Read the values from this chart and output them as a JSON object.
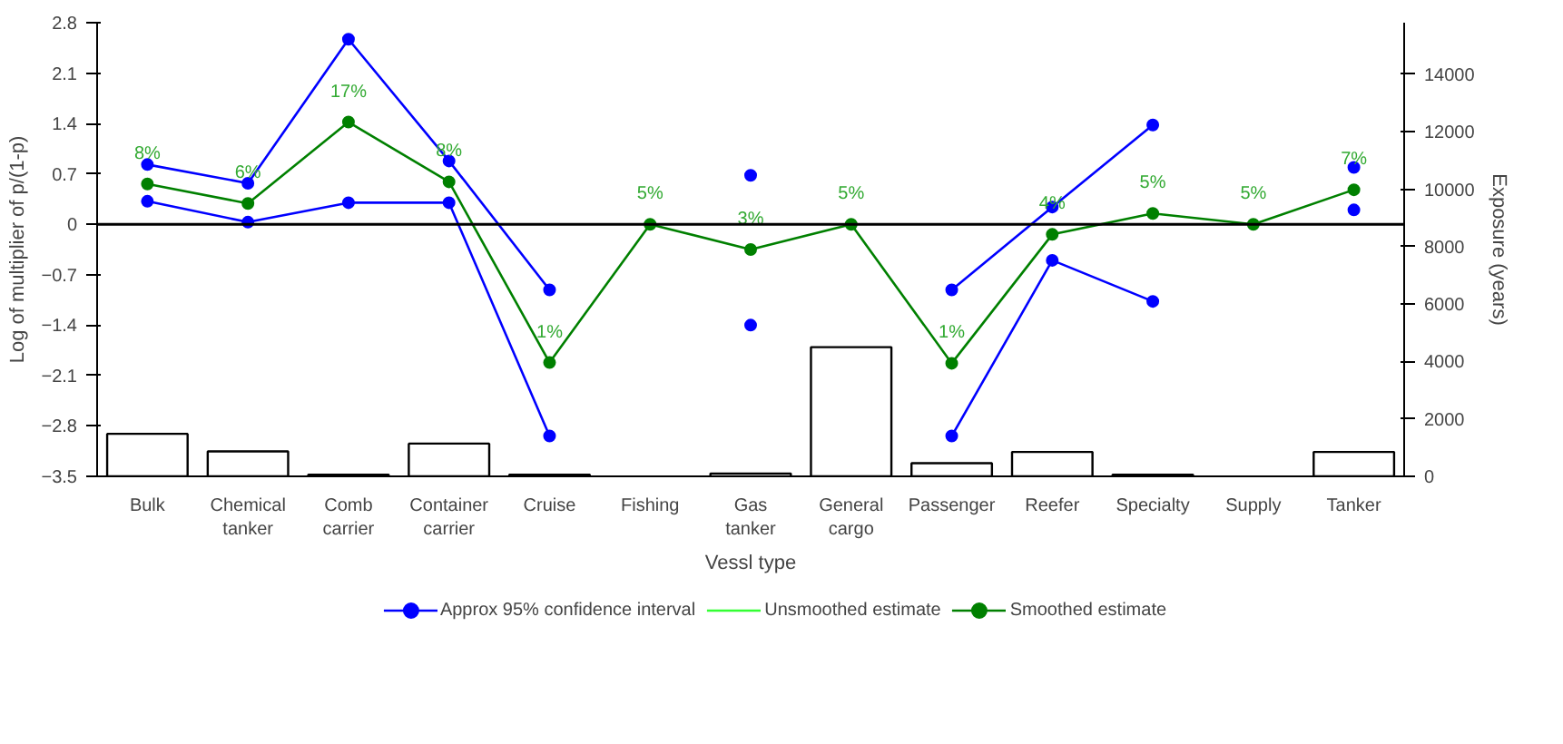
{
  "chart_data": {
    "type": "line",
    "xlabel": "Vessl type",
    "ylabel": "Log of multiplier of p/(1-p)",
    "y2label": "Exposure (years)",
    "categories": [
      "Bulk",
      "Chemical tanker",
      "Comb carrier",
      "Container carrier",
      "Cruise",
      "Fishing",
      "Gas tanker",
      "General cargo",
      "Passenger",
      "Reefer",
      "Specialty",
      "Supply",
      "Tanker"
    ],
    "ylim": [
      -3.5,
      2.8
    ],
    "yticks": [
      -3.5,
      -2.8,
      -2.1,
      -1.4,
      -0.7,
      0,
      0.7,
      1.4,
      2.1,
      2.8
    ],
    "y2lim": [
      0,
      15800
    ],
    "y2ticks": [
      0,
      2000,
      4000,
      6000,
      8000,
      10000,
      12000,
      14000
    ],
    "grid": false,
    "legend": "bottom",
    "marker": "circle",
    "ref_lines": [
      {
        "axis": "y",
        "value": 0,
        "color": "#000000"
      }
    ],
    "series": [
      {
        "type": "bar",
        "axis": "y2",
        "color": "#ffffff",
        "values": [
          1480,
          870,
          60,
          1140,
          60,
          0,
          100,
          4500,
          460,
          850,
          60,
          0,
          850
        ]
      },
      {
        "name": "Approx 95% confidence interval",
        "color": "#0000ff",
        "values": [
          0.83,
          0.57,
          2.57,
          0.88,
          -0.91,
          null,
          0.68,
          null,
          -0.91,
          0.24,
          1.38,
          null,
          0.79
        ]
      },
      {
        "color": "#0000ff",
        "values": [
          0.32,
          0.03,
          0.3,
          0.3,
          -2.94,
          null,
          -1.4,
          null,
          -2.94,
          -0.5,
          -1.07,
          null,
          0.2
        ]
      },
      {
        "name": "Unsmoothed estimate",
        "color": "#33ff33",
        "marker": "none",
        "values": [
          null,
          null,
          null,
          null,
          null,
          null,
          null,
          null,
          null,
          null,
          null,
          null,
          null
        ]
      },
      {
        "name": "Smoothed estimate",
        "color": "#008000",
        "values": [
          0.56,
          0.29,
          1.42,
          0.59,
          -1.92,
          0,
          -0.35,
          0,
          -1.93,
          -0.14,
          0.15,
          0,
          0.48
        ]
      }
    ],
    "annotations": [
      {
        "text": "8%",
        "x": "Bulk",
        "y": 0.56
      },
      {
        "text": "6%",
        "x": "Chemical tanker",
        "y": 0.29
      },
      {
        "text": "17%",
        "x": "Comb carrier",
        "y": 1.42
      },
      {
        "text": "8%",
        "x": "Container carrier",
        "y": 0.59
      },
      {
        "text": "1%",
        "x": "Cruise",
        "y": -1.92
      },
      {
        "text": "5%",
        "x": "Fishing",
        "y": 0
      },
      {
        "text": "3%",
        "x": "Gas tanker",
        "y": -0.35
      },
      {
        "text": "5%",
        "x": "General cargo",
        "y": 0
      },
      {
        "text": "1%",
        "x": "Passenger",
        "y": -1.93
      },
      {
        "text": "4%",
        "x": "Reefer",
        "y": -0.14
      },
      {
        "text": "5%",
        "x": "Specialty",
        "y": 0.15
      },
      {
        "text": "5%",
        "x": "Supply",
        "y": 0
      },
      {
        "text": "7%",
        "x": "Tanker",
        "y": 0.48
      }
    ]
  }
}
